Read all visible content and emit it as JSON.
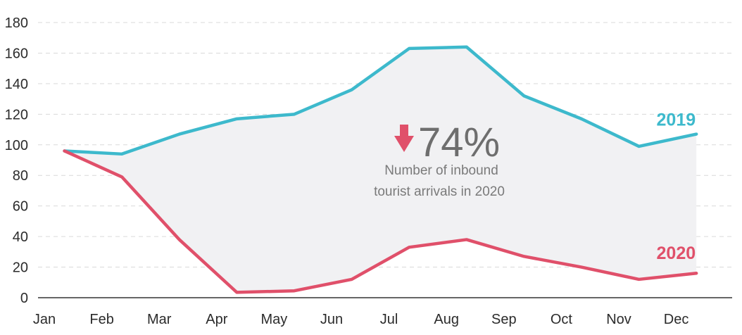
{
  "chart_data": {
    "type": "line",
    "title": "",
    "xlabel": "",
    "ylabel": "",
    "categories": [
      "Jan",
      "Feb",
      "Mar",
      "Apr",
      "May",
      "Jun",
      "Jul",
      "Aug",
      "Sep",
      "Oct",
      "Nov",
      "Dec"
    ],
    "y_ticks": [
      "0",
      "20",
      "40",
      "60",
      "80",
      "100",
      "120",
      "140",
      "160",
      "180"
    ],
    "ylim": [
      0,
      180
    ],
    "grid": "horizontal dashed",
    "series": [
      {
        "name": "2019",
        "color": "#3db9cc",
        "points": [
          {
            "x": 0.35,
            "y": 96
          },
          {
            "x": 1.35,
            "y": 94
          },
          {
            "x": 2.35,
            "y": 107
          },
          {
            "x": 3.35,
            "y": 117
          },
          {
            "x": 4.35,
            "y": 120
          },
          {
            "x": 5.35,
            "y": 136
          },
          {
            "x": 6.35,
            "y": 163
          },
          {
            "x": 7.35,
            "y": 164
          },
          {
            "x": 8.35,
            "y": 132
          },
          {
            "x": 9.35,
            "y": 117
          },
          {
            "x": 10.35,
            "y": 99
          },
          {
            "x": 11.35,
            "y": 107
          }
        ]
      },
      {
        "name": "2020",
        "color": "#e0506a",
        "points": [
          {
            "x": 0.35,
            "y": 96
          },
          {
            "x": 1.35,
            "y": 79
          },
          {
            "x": 2.35,
            "y": 38
          },
          {
            "x": 3.35,
            "y": 3.5
          },
          {
            "x": 4.35,
            "y": 4.5
          },
          {
            "x": 5.35,
            "y": 12
          },
          {
            "x": 6.35,
            "y": 33
          },
          {
            "x": 7.35,
            "y": 38
          },
          {
            "x": 8.35,
            "y": 27
          },
          {
            "x": 9.35,
            "y": 20
          },
          {
            "x": 10.35,
            "y": 12
          },
          {
            "x": 11.35,
            "y": 16
          }
        ]
      }
    ],
    "fill_between_color": "#f1f1f3",
    "annotation": {
      "value": "74%",
      "lines": [
        "Number of inbound",
        "tourist arrivals in 2020"
      ],
      "arrow": "down-arrow-icon",
      "arrow_color": "#e0506a"
    }
  }
}
